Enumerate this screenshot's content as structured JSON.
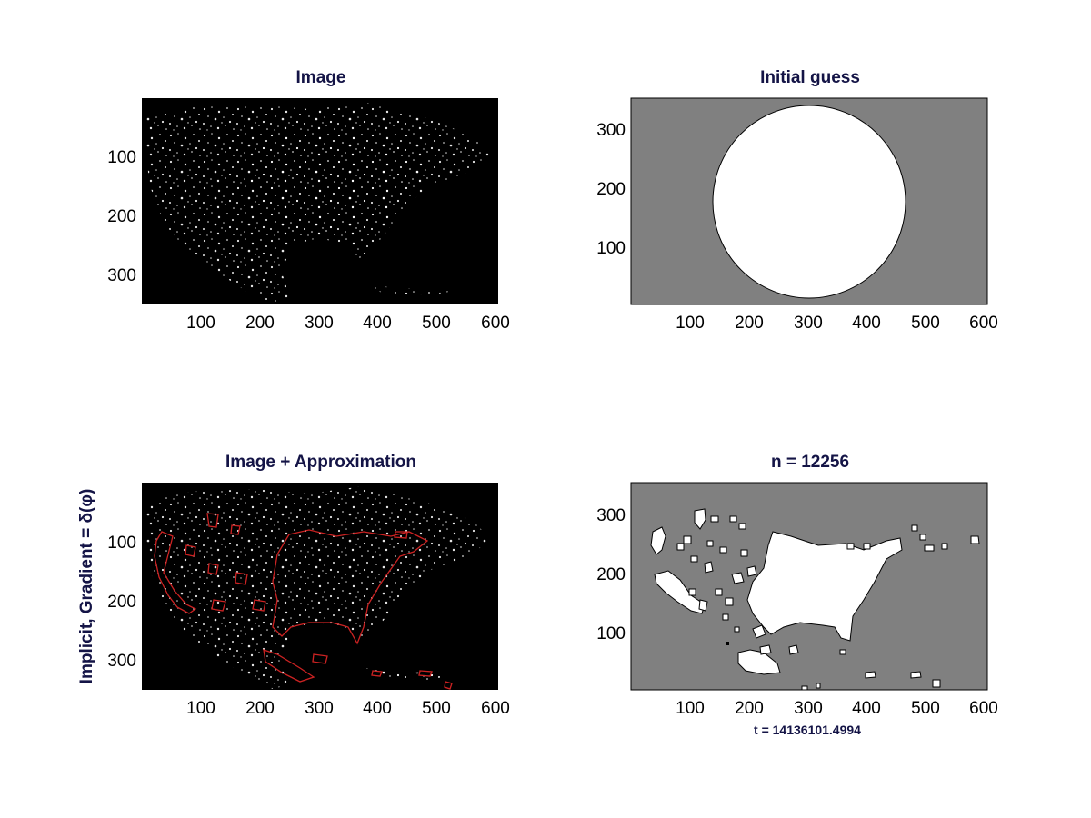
{
  "figure": {
    "ylabel_bottom_left": "Implicit,  Gradient = δ(φ)",
    "xlabel_bottom_right": "t = 14136101.4994"
  },
  "colors": {
    "title": "#141446",
    "image_bg": "#000000",
    "level_set_bg": "#808080",
    "region_fill": "#ffffff",
    "contour": "#cc2222"
  },
  "chart_data": [
    {
      "type": "image",
      "title": "Image",
      "xlim": [
        0,
        600
      ],
      "ylim": [
        0,
        350
      ],
      "y_direction": "reverse",
      "xticks": [
        "100",
        "200",
        "300",
        "400",
        "500",
        "600"
      ],
      "yticks": [
        "100",
        "200",
        "300"
      ],
      "xtick_values": [
        100,
        200,
        300,
        400,
        500,
        600
      ],
      "ytick_values": [
        100,
        200,
        300
      ]
    },
    {
      "type": "image",
      "title": "Initial guess",
      "xlim": [
        0,
        600
      ],
      "ylim": [
        0,
        350
      ],
      "y_direction": "normal",
      "xticks": [
        "100",
        "200",
        "300",
        "400",
        "500",
        "600"
      ],
      "yticks": [
        "300",
        "200",
        "100"
      ],
      "xtick_values": [
        100,
        200,
        300,
        400,
        500,
        600
      ],
      "ytick_values": [
        300,
        200,
        100
      ],
      "circle": {
        "cx": 300,
        "cy": 175,
        "r": 163
      }
    },
    {
      "type": "image",
      "title": "Image + Approximation",
      "xlim": [
        0,
        600
      ],
      "ylim": [
        0,
        350
      ],
      "y_direction": "reverse",
      "xticks": [
        "100",
        "200",
        "300",
        "400",
        "500",
        "600"
      ],
      "yticks": [
        "100",
        "200",
        "300"
      ],
      "xtick_values": [
        100,
        200,
        300,
        400,
        500,
        600
      ],
      "ytick_values": [
        100,
        200,
        300
      ]
    },
    {
      "type": "image",
      "title": "n = 12256",
      "xlim": [
        0,
        600
      ],
      "ylim": [
        0,
        350
      ],
      "y_direction": "normal",
      "xticks": [
        "100",
        "200",
        "300",
        "400",
        "500",
        "600"
      ],
      "yticks": [
        "300",
        "200",
        "100"
      ],
      "xtick_values": [
        100,
        200,
        300,
        400,
        500,
        600
      ],
      "ytick_values": [
        300,
        200,
        100
      ]
    }
  ]
}
